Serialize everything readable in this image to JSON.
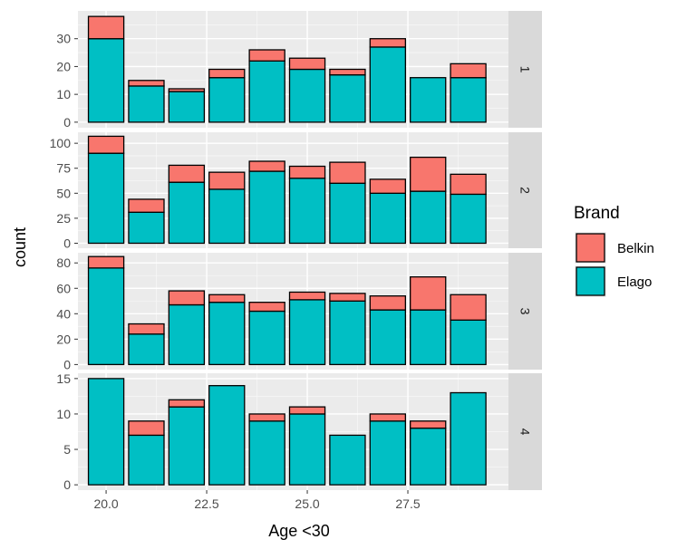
{
  "chart_data": {
    "type": "bar",
    "position": "stacked",
    "facet_by": "row",
    "xlabel": "Age <30",
    "ylabel": "count",
    "x_ticks": [
      20.0,
      22.5,
      25.0,
      27.5
    ],
    "x_tick_labels": [
      "20.0",
      "22.5",
      "25.0",
      "27.5"
    ],
    "x_range": [
      19.3,
      30.0
    ],
    "x_bins": [
      20,
      21,
      22,
      23,
      24,
      25,
      26,
      27,
      28,
      29
    ],
    "bar_width": 0.88,
    "legend": {
      "title": "Brand",
      "position": "right",
      "entries": [
        {
          "name": "Belkin",
          "color": "#F8766D"
        },
        {
          "name": "Elago",
          "color": "#00BFC4"
        }
      ]
    },
    "colors": {
      "panel_bg": "#EBEBEB",
      "grid_major": "#FFFFFF",
      "strip_bg": "#D9D9D9",
      "bar_outline": "#000000"
    },
    "panels": [
      {
        "strip": "1",
        "ylim": [
          -2,
          40
        ],
        "y_ticks": [
          0,
          10,
          20,
          30
        ],
        "y_tick_labels": [
          "0",
          "10",
          "20",
          "30"
        ],
        "series": [
          {
            "name": "Elago",
            "values": [
              30,
              13,
              11,
              16,
              22,
              19,
              17,
              27,
              16,
              16
            ]
          },
          {
            "name": "Belkin",
            "values": [
              8,
              2,
              1,
              3,
              4,
              4,
              2,
              3,
              0,
              5
            ]
          }
        ]
      },
      {
        "strip": "2",
        "ylim": [
          -5,
          111
        ],
        "y_ticks": [
          0,
          25,
          50,
          75,
          100
        ],
        "y_tick_labels": [
          "0",
          "25",
          "50",
          "75",
          "100"
        ],
        "series": [
          {
            "name": "Elago",
            "values": [
              90,
              31,
              61,
              54,
              72,
              65,
              60,
              50,
              52,
              49
            ]
          },
          {
            "name": "Belkin",
            "values": [
              17,
              13,
              17,
              17,
              10,
              12,
              21,
              14,
              34,
              20
            ]
          }
        ]
      },
      {
        "strip": "3",
        "ylim": [
          -4,
          88
        ],
        "y_ticks": [
          0,
          20,
          40,
          60,
          80
        ],
        "y_tick_labels": [
          "0",
          "20",
          "40",
          "60",
          "80"
        ],
        "series": [
          {
            "name": "Elago",
            "values": [
              76,
              24,
              47,
              49,
              42,
              51,
              50,
              43,
              43,
              35
            ]
          },
          {
            "name": "Belkin",
            "values": [
              9,
              8,
              11,
              6,
              7,
              6,
              6,
              11,
              26,
              20
            ]
          }
        ]
      },
      {
        "strip": "4",
        "ylim": [
          -0.75,
          15.75
        ],
        "y_ticks": [
          0,
          5,
          10,
          15
        ],
        "y_tick_labels": [
          "0",
          "5",
          "10",
          "15"
        ],
        "series": [
          {
            "name": "Elago",
            "values": [
              15,
              7,
              11,
              14,
              9,
              10,
              7,
              9,
              8,
              13
            ]
          },
          {
            "name": "Belkin",
            "values": [
              0,
              2,
              1,
              0,
              1,
              1,
              0,
              1,
              1,
              0
            ]
          }
        ]
      }
    ]
  }
}
